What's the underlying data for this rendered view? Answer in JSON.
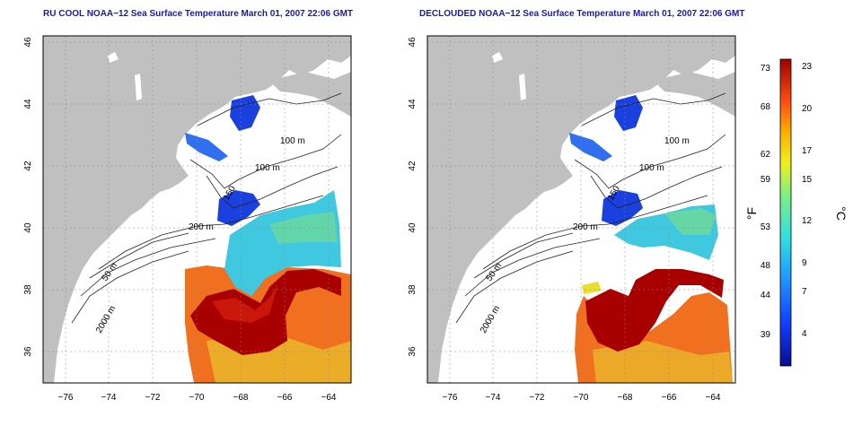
{
  "panels": [
    {
      "title": "RU COOL NOAA−12 Sea Surface Temperature March 01, 2007 22:06 GMT",
      "x_ticks": [
        "−76",
        "−74",
        "−72",
        "−70",
        "−68",
        "−66",
        "−64"
      ],
      "y_ticks": [
        "36",
        "38",
        "40",
        "42",
        "44",
        "46"
      ],
      "contours": [
        "100 m",
        "100 m",
        "150",
        "200 m",
        "50 m",
        "2000 m"
      ]
    },
    {
      "title": "DECLOUDED NOAA−12 Sea Surface Temperature March 01, 2007 22:06 GMT",
      "x_ticks": [
        "−76",
        "−74",
        "−72",
        "−70",
        "−68",
        "−66",
        "−64"
      ],
      "y_ticks": [
        "36",
        "38",
        "40",
        "42",
        "44",
        "46"
      ],
      "contours": [
        "100 m",
        "100 m",
        "150",
        "200 m",
        "50 m",
        "2000 m"
      ]
    }
  ],
  "colorbar": {
    "f_label": "°F",
    "c_label": "°C",
    "f_ticks": [
      "73",
      "68",
      "62",
      "59",
      "53",
      "48",
      "44",
      "39"
    ],
    "c_ticks": [
      "23",
      "20",
      "17",
      "15",
      "12",
      "9",
      "7",
      "4"
    ]
  },
  "colors": {
    "title": "#1a1aa8",
    "land": "#c0c0c0",
    "warm": "#b00000",
    "hot": "#e03010",
    "orange": "#f07020",
    "cyan": "#30c8e0",
    "blue": "#1030d0"
  }
}
